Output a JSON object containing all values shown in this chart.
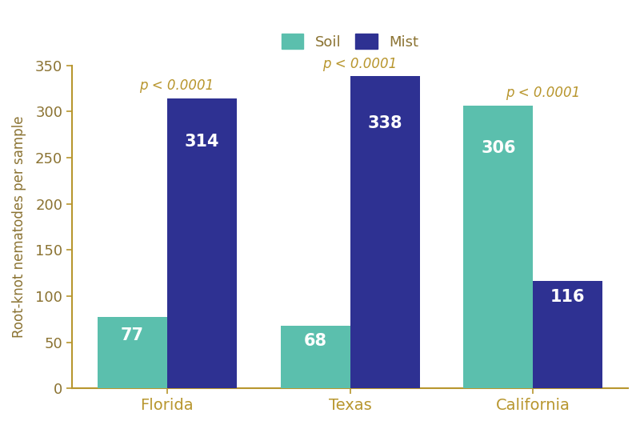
{
  "categories": [
    "Florida",
    "Texas",
    "California"
  ],
  "soil_values": [
    77,
    68,
    306
  ],
  "mist_values": [
    314,
    338,
    116
  ],
  "soil_color": "#5bbfad",
  "mist_color": "#2e3192",
  "ylabel": "Root-knot nematodes per sample",
  "ylim": [
    0,
    350
  ],
  "yticks": [
    0,
    50,
    100,
    150,
    200,
    250,
    300,
    350
  ],
  "p_labels": [
    "p < 0.0001",
    "p < 0.0001",
    "p < 0.0001"
  ],
  "p_color": "#b8962e",
  "bar_label_color": "#ffffff",
  "bar_label_fontsize": 15,
  "p_fontsize": 12,
  "xlabel_fontsize": 14,
  "ylabel_fontsize": 12,
  "legend_fontsize": 13,
  "tick_fontsize": 13,
  "bar_width": 0.38,
  "background_color": "#ffffff",
  "legend_labels": [
    "Soil",
    "Mist"
  ],
  "axis_color": "#b8962e",
  "text_color": "#8B7332",
  "tick_color": "#b8962e"
}
